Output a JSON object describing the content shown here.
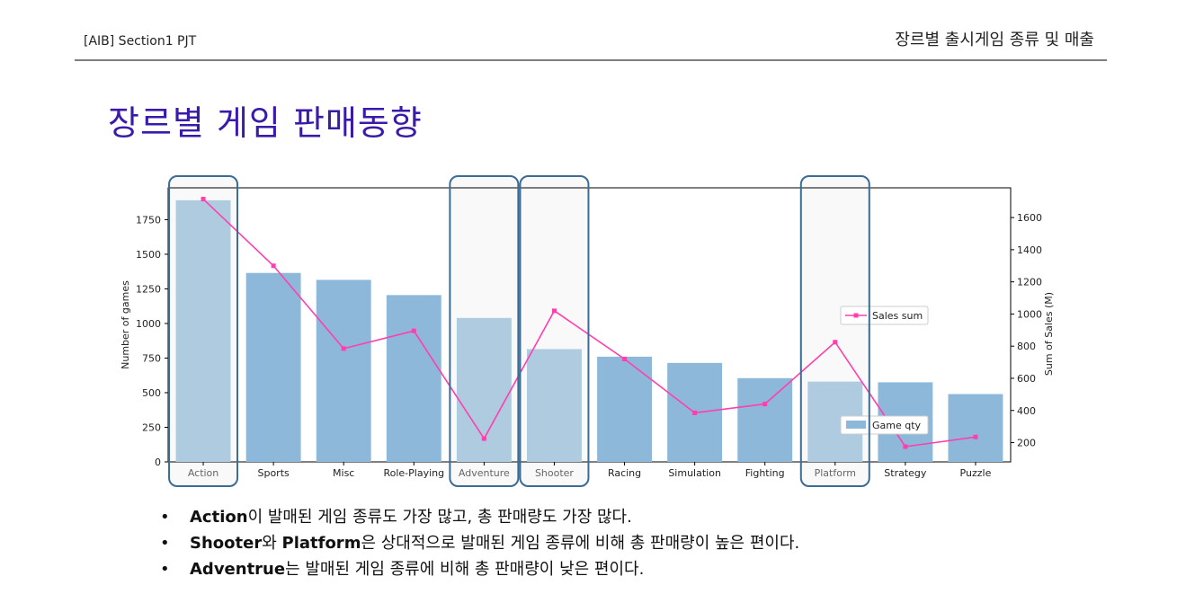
{
  "header": {
    "left_label": "[AIB] Section1 PJT",
    "right_label": "장르별 출시게임 종류 및 매출"
  },
  "slide_title": "장르별 게임 판매동향",
  "chart_data": {
    "type": "bar+line",
    "categories": [
      "Action",
      "Sports",
      "Misc",
      "Role-Playing",
      "Adventure",
      "Shooter",
      "Racing",
      "Simulation",
      "Fighting",
      "Platform",
      "Strategy",
      "Puzzle"
    ],
    "series": [
      {
        "name": "Game qty",
        "type": "bar",
        "axis": "left",
        "values": [
          1890,
          1365,
          1315,
          1205,
          1040,
          815,
          760,
          715,
          605,
          580,
          575,
          490
        ]
      },
      {
        "name": "Sales sum",
        "type": "line",
        "axis": "right",
        "color": "#ff3fae",
        "values": [
          1715,
          1300,
          785,
          895,
          225,
          1020,
          720,
          385,
          440,
          825,
          175,
          235
        ]
      }
    ],
    "highlighted": [
      "Action",
      "Adventure",
      "Shooter",
      "Platform"
    ],
    "ylabel": "Number of games",
    "y2label": "Sum of Sales (M)",
    "ylim": [
      0,
      1980
    ],
    "y2lim": [
      80,
      1785
    ],
    "yticks": [
      0,
      250,
      500,
      750,
      1000,
      1250,
      1500,
      1750
    ],
    "y2ticks": [
      200,
      400,
      600,
      800,
      1000,
      1200,
      1400,
      1600
    ],
    "legend_line": "Sales sum",
    "legend_bar": "Game qty",
    "colors": {
      "bar": "#8db8d9",
      "bar_highlight": "#aecbe0",
      "line": "#ff3fae",
      "box": "#3c6b94",
      "box_fill": "#f9f9f9"
    }
  },
  "bullets": [
    {
      "bold": "Action",
      "text": "이 발매된 게임 종류도 가장 많고, 총 판매량도 가장 많다."
    },
    {
      "bold": "Shooter",
      "text": "와 ",
      "bold2": "Platform",
      "text2": "은 상대적으로 발매된 게임 종류에 비해 총 판매량이 높은 편이다."
    },
    {
      "bold": "Adventrue",
      "text": "는 발매된 게임 종류에 비해 총 판매량이 낮은 편이다."
    }
  ]
}
